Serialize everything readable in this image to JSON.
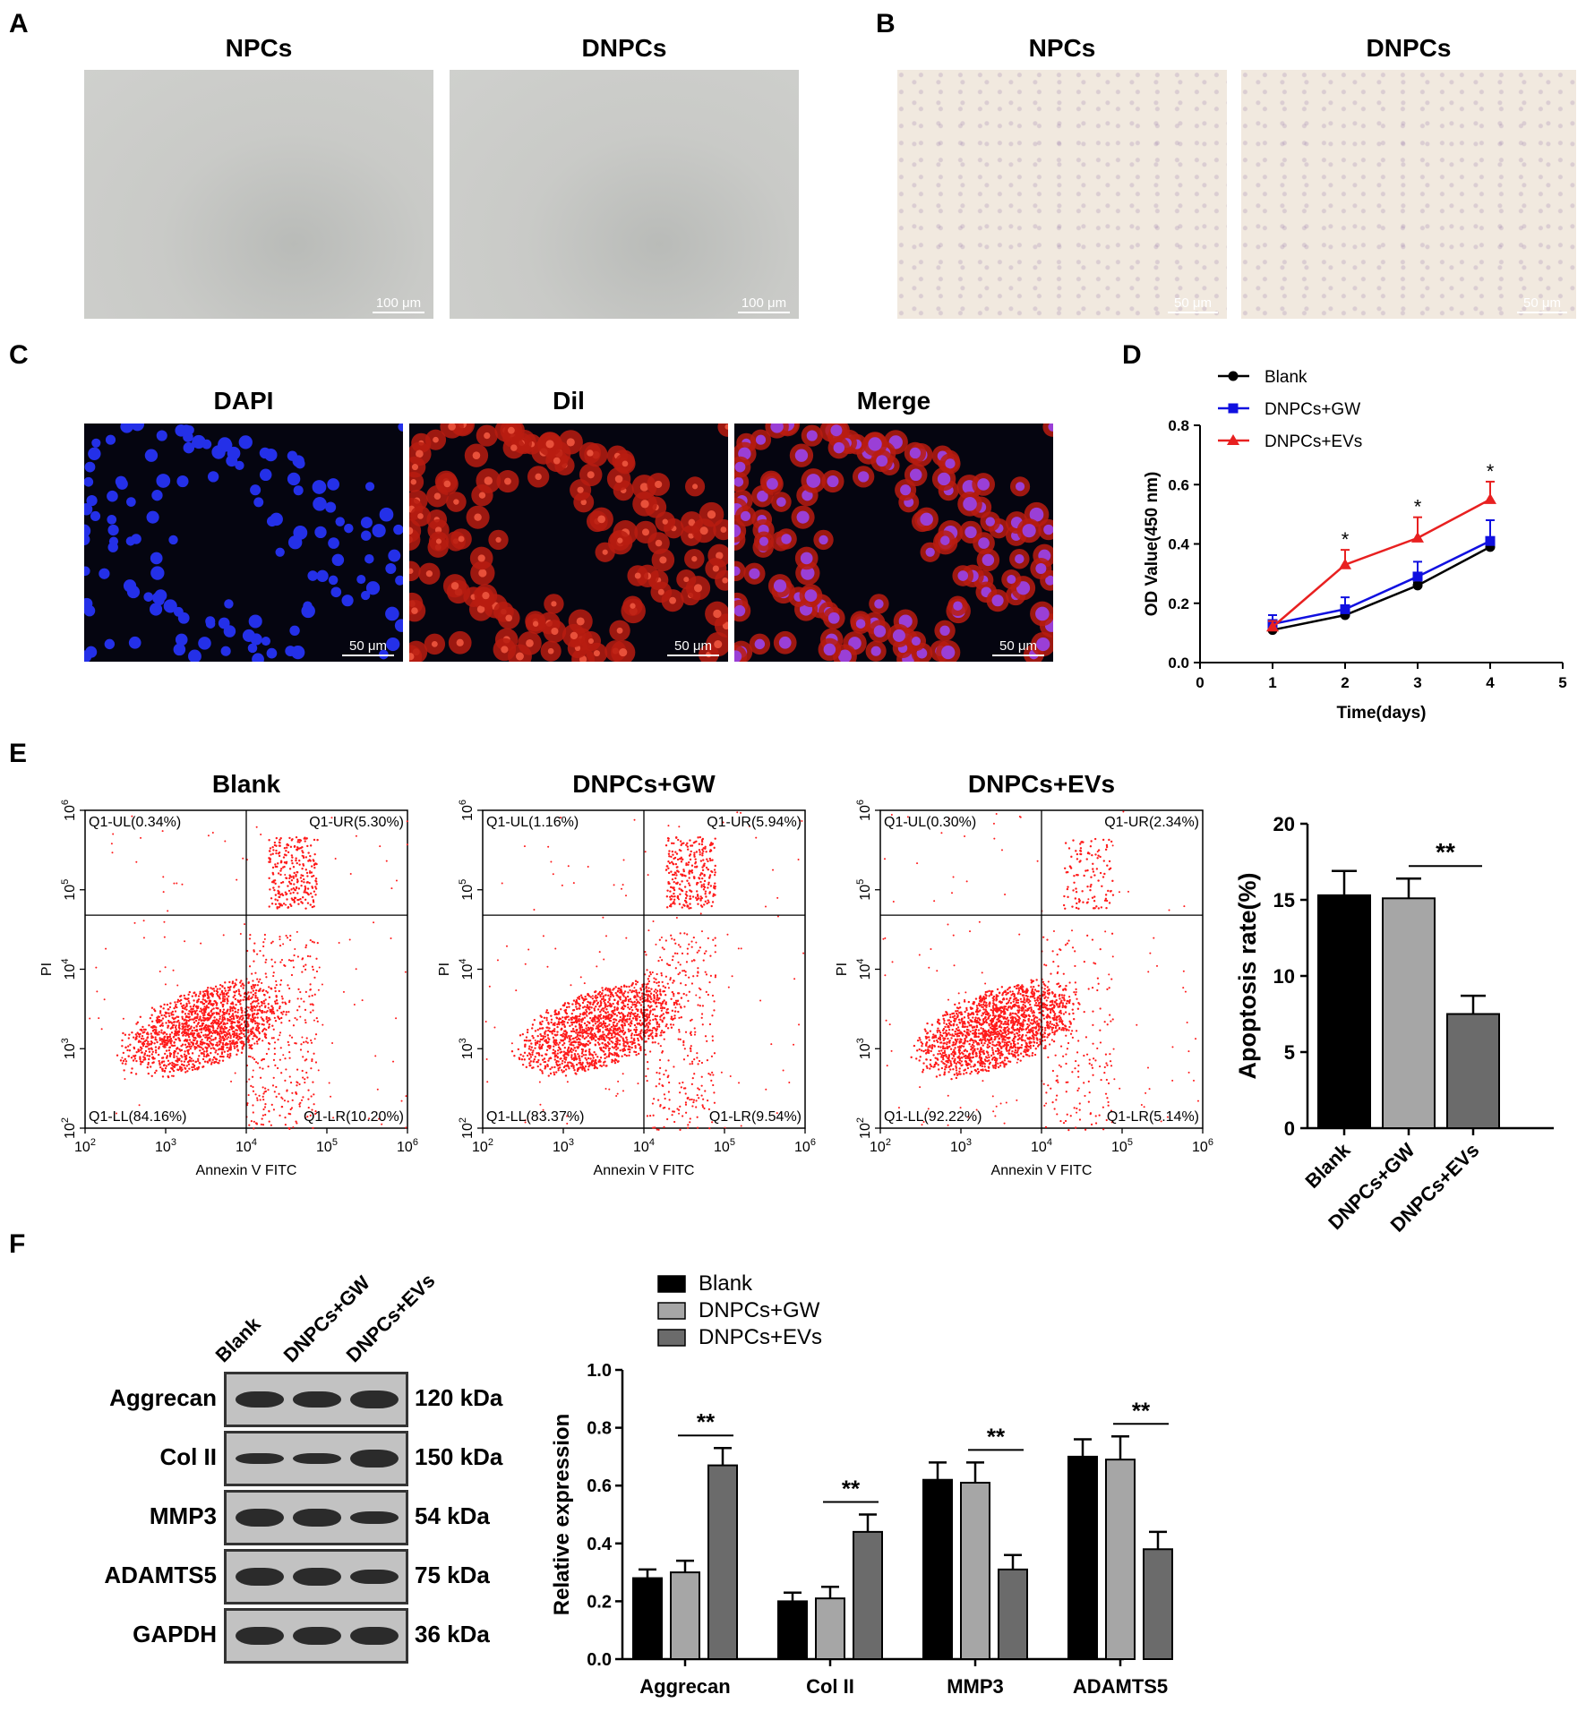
{
  "panel_letters": [
    "A",
    "B",
    "C",
    "D",
    "E",
    "F"
  ],
  "panelA": {
    "titles": [
      "NPCs",
      "DNPCs"
    ],
    "scale": [
      "100 μm",
      "100 μm"
    ]
  },
  "panelB": {
    "titles": [
      "NPCs",
      "DNPCs"
    ],
    "scale": [
      "50 μm",
      "50 μm"
    ]
  },
  "panelC": {
    "titles": [
      "DAPI",
      "Dil",
      "Merge"
    ],
    "scale": [
      "50 μm",
      "50 μm",
      "50 μm"
    ]
  },
  "panelE": {
    "plots": [
      {
        "title": "Blank",
        "UL": "Q1-UL(0.34%)",
        "UR": "Q1-UR(5.30%)",
        "LL": "Q1-LL(84.16%)",
        "LR": "Q1-LR(10.20%)"
      },
      {
        "title": "DNPCs+GW",
        "UL": "Q1-UL(1.16%)",
        "UR": "Q1-UR(5.94%)",
        "LL": "Q1-LL(83.37%)",
        "LR": "Q1-LR(9.54%)"
      },
      {
        "title": "DNPCs+EVs",
        "UL": "Q1-UL(0.30%)",
        "UR": "Q1-UR(2.34%)",
        "LL": "Q1-LL(92.22%)",
        "LR": "Q1-LR(5.14%)"
      }
    ],
    "xlabel": "Annexin V FITC",
    "ylabel": "PI"
  },
  "panelF": {
    "lane_labels": [
      "Blank",
      "DNPCs+GW",
      "DNPCs+EVs"
    ],
    "proteins": [
      {
        "name": "Aggrecan",
        "kda": "120 kDa",
        "bands": [
          0.85,
          0.85,
          1.0
        ]
      },
      {
        "name": "Col II",
        "kda": "150 kDa",
        "bands": [
          0.55,
          0.55,
          1.0
        ]
      },
      {
        "name": "MMP3",
        "kda": "54 kDa",
        "bands": [
          1.0,
          0.95,
          0.6
        ]
      },
      {
        "name": "ADAMTS5",
        "kda": "75 kDa",
        "bands": [
          1.0,
          1.0,
          0.8
        ]
      },
      {
        "name": "GAPDH",
        "kda": "36 kDa",
        "bands": [
          1.0,
          1.0,
          1.0
        ]
      }
    ]
  },
  "chart_data": [
    {
      "type": "line",
      "x": [
        1,
        2,
        3,
        4
      ],
      "xlabel": "Time(days)",
      "ylabel": "OD Value(450 nm)",
      "xlim": [
        0,
        5
      ],
      "xticks": [
        "0",
        "1",
        "2",
        "3",
        "4",
        "5"
      ],
      "ylim": [
        0,
        0.8
      ],
      "yticks": [
        "0.0",
        "0.2",
        "0.4",
        "0.6",
        "0.8"
      ],
      "legend": "top-left",
      "series": [
        {
          "name": "Blank",
          "color": "#000000",
          "marker": "circle",
          "values": [
            0.11,
            0.16,
            0.26,
            0.39
          ],
          "err": [
            0.01,
            0.01,
            0.01,
            0.01
          ]
        },
        {
          "name": "DNPCs+GW",
          "color": "#1010e0",
          "marker": "square",
          "values": [
            0.13,
            0.18,
            0.29,
            0.41
          ],
          "err": [
            0.03,
            0.04,
            0.05,
            0.07
          ]
        },
        {
          "name": "DNPCs+EVs",
          "color": "#e82020",
          "marker": "triangle",
          "values": [
            0.12,
            0.33,
            0.42,
            0.55
          ],
          "err": [
            0.02,
            0.05,
            0.07,
            0.06
          ]
        }
      ],
      "annotations": [
        {
          "x": 2,
          "text": "*"
        },
        {
          "x": 3,
          "text": "*"
        },
        {
          "x": 4,
          "text": "*"
        }
      ]
    },
    {
      "type": "bar",
      "categories": [
        "Blank",
        "DNPCs+GW",
        "DNPCs+EVs"
      ],
      "values": [
        15.3,
        15.1,
        7.5
      ],
      "err": [
        1.6,
        1.3,
        1.2
      ],
      "colors": [
        "#000000",
        "#a6a6a6",
        "#6b6b6b"
      ],
      "ylabel": "Apoptosis rate(%)",
      "ylim": [
        0,
        20
      ],
      "yticks": [
        "0",
        "5",
        "10",
        "15",
        "20"
      ],
      "significance": {
        "between": [
          1,
          2
        ],
        "text": "**"
      }
    },
    {
      "type": "bar",
      "categories": [
        "Aggrecan",
        "Col II",
        "MMP3",
        "ADAMTS5"
      ],
      "ylabel": "Relative  expression",
      "ylim": [
        0,
        1.0
      ],
      "yticks": [
        "0.0",
        "0.2",
        "0.4",
        "0.6",
        "0.8",
        "1.0"
      ],
      "legend": "top",
      "series": [
        {
          "name": "Blank",
          "color": "#000000",
          "values": [
            0.28,
            0.2,
            0.62,
            0.7
          ],
          "err": [
            0.03,
            0.03,
            0.06,
            0.06
          ]
        },
        {
          "name": "DNPCs+GW",
          "color": "#a6a6a6",
          "values": [
            0.3,
            0.21,
            0.61,
            0.69
          ],
          "err": [
            0.04,
            0.04,
            0.07,
            0.08
          ]
        },
        {
          "name": "DNPCs+EVs",
          "color": "#6b6b6b",
          "values": [
            0.67,
            0.44,
            0.31,
            0.38
          ],
          "err": [
            0.06,
            0.06,
            0.05,
            0.06
          ]
        }
      ],
      "significance": [
        {
          "category": 0,
          "text": "**"
        },
        {
          "category": 1,
          "text": "**"
        },
        {
          "category": 2,
          "text": "**"
        },
        {
          "category": 3,
          "text": "**"
        }
      ]
    }
  ]
}
